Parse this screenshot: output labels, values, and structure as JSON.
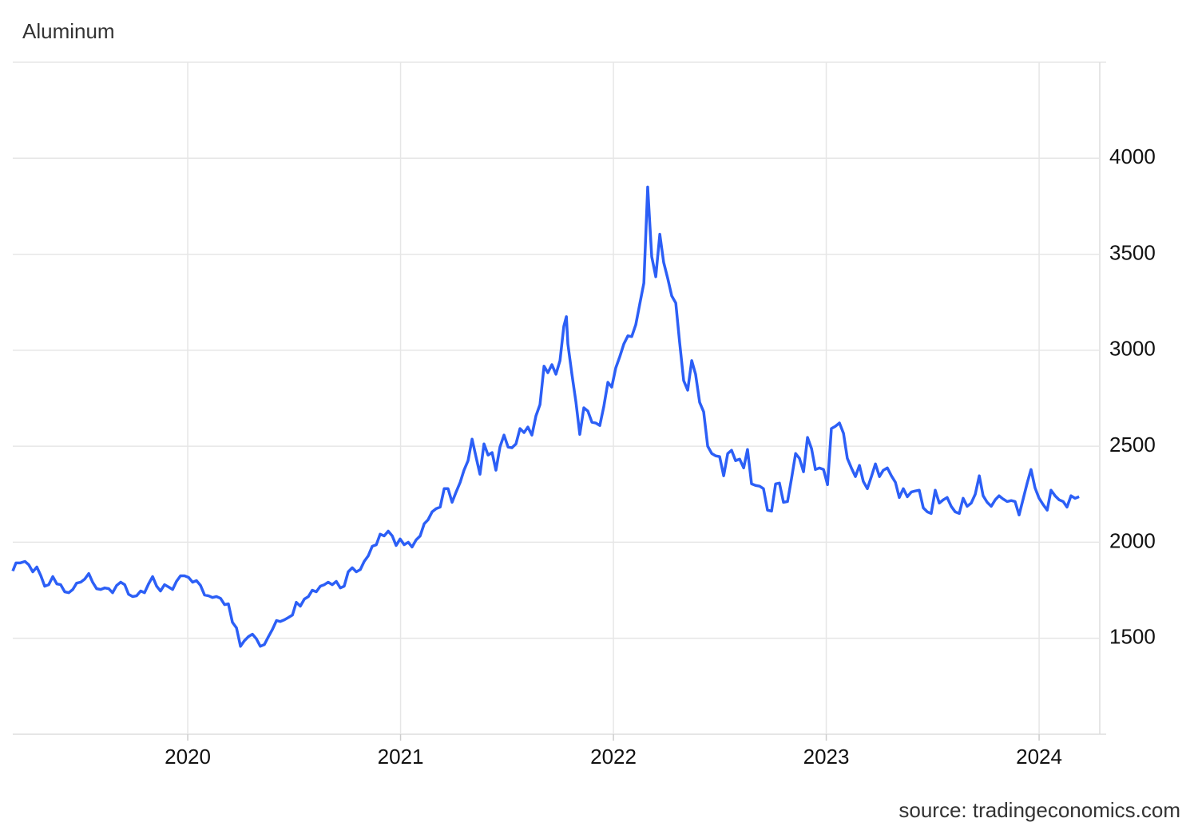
{
  "chart_data": {
    "type": "line",
    "title": "Aluminum",
    "source": "source: tradingeconomics.com",
    "color": "#2c5ff6",
    "grid": true,
    "xlim": [
      2019.178,
      2024.285
    ],
    "xticks": [
      2020,
      2021,
      2022,
      2023,
      2024
    ],
    "ylim": [
      1000,
      4500
    ],
    "yticks": [
      1500,
      2000,
      2500,
      3000,
      3500,
      4000
    ],
    "x": [
      2019.178,
      2019.193,
      2019.212,
      2019.235,
      2019.253,
      2019.272,
      2019.291,
      2019.31,
      2019.328,
      2019.347,
      2019.366,
      2019.385,
      2019.403,
      2019.422,
      2019.441,
      2019.46,
      2019.478,
      2019.497,
      2019.516,
      2019.535,
      2019.553,
      2019.572,
      2019.591,
      2019.61,
      2019.629,
      2019.647,
      2019.666,
      2019.685,
      2019.704,
      2019.722,
      2019.741,
      2019.76,
      2019.779,
      2019.797,
      2019.816,
      2019.835,
      2019.854,
      2019.872,
      2019.891,
      2019.91,
      2019.929,
      2019.947,
      2019.966,
      2019.985,
      2020.004,
      2020.023,
      2020.041,
      2020.06,
      2020.079,
      2020.098,
      2020.116,
      2020.135,
      2020.154,
      2020.173,
      2020.191,
      2020.21,
      2020.229,
      2020.248,
      2020.266,
      2020.285,
      2020.304,
      2020.323,
      2020.341,
      2020.36,
      2020.379,
      2020.398,
      2020.417,
      2020.435,
      2020.454,
      2020.473,
      2020.492,
      2020.51,
      2020.529,
      2020.548,
      2020.567,
      2020.585,
      2020.604,
      2020.623,
      2020.642,
      2020.66,
      2020.679,
      2020.698,
      2020.717,
      2020.735,
      2020.754,
      2020.773,
      2020.792,
      2020.811,
      2020.829,
      2020.848,
      2020.867,
      2020.886,
      2020.904,
      2020.923,
      2020.942,
      2020.961,
      2020.979,
      2020.998,
      2021.017,
      2021.036,
      2021.054,
      2021.073,
      2021.092,
      2021.111,
      2021.129,
      2021.148,
      2021.167,
      2021.186,
      2021.205,
      2021.223,
      2021.242,
      2021.261,
      2021.28,
      2021.298,
      2021.317,
      2021.336,
      2021.355,
      2021.373,
      2021.392,
      2021.411,
      2021.43,
      2021.448,
      2021.467,
      2021.486,
      2021.505,
      2021.523,
      2021.542,
      2021.561,
      2021.58,
      2021.598,
      2021.617,
      2021.636,
      2021.655,
      2021.674,
      2021.692,
      2021.711,
      2021.73,
      2021.749,
      2021.767,
      2021.779,
      2021.786,
      2021.805,
      2021.824,
      2021.842,
      2021.861,
      2021.88,
      2021.899,
      2021.917,
      2021.936,
      2021.955,
      2021.974,
      2021.992,
      2022.011,
      2022.03,
      2022.049,
      2022.068,
      2022.086,
      2022.105,
      2022.124,
      2022.143,
      2022.161,
      2022.18,
      2022.199,
      2022.218,
      2022.236,
      2022.255,
      2022.274,
      2022.293,
      2022.311,
      2022.33,
      2022.349,
      2022.368,
      2022.386,
      2022.405,
      2022.424,
      2022.443,
      2022.462,
      2022.48,
      2022.499,
      2022.518,
      2022.537,
      2022.555,
      2022.574,
      2022.593,
      2022.612,
      2022.63,
      2022.649,
      2022.668,
      2022.687,
      2022.705,
      2022.724,
      2022.743,
      2022.762,
      2022.78,
      2022.799,
      2022.818,
      2022.837,
      2022.856,
      2022.874,
      2022.893,
      2022.912,
      2022.931,
      2022.949,
      2022.968,
      2022.987,
      2023.006,
      2023.024,
      2023.043,
      2023.062,
      2023.081,
      2023.099,
      2023.118,
      2023.137,
      2023.156,
      2023.174,
      2023.193,
      2023.212,
      2023.231,
      2023.25,
      2023.268,
      2023.287,
      2023.306,
      2023.325,
      2023.343,
      2023.362,
      2023.381,
      2023.4,
      2023.418,
      2023.437,
      2023.456,
      2023.475,
      2023.493,
      2023.512,
      2023.531,
      2023.55,
      2023.568,
      2023.587,
      2023.606,
      2023.625,
      2023.643,
      2023.662,
      2023.681,
      2023.7,
      2023.719,
      2023.737,
      2023.756,
      2023.775,
      2023.794,
      2023.812,
      2023.831,
      2023.85,
      2023.869,
      2023.887,
      2023.906,
      2023.925,
      2023.944,
      2023.962,
      2023.981,
      2024.0,
      2024.019,
      2024.038,
      2024.056,
      2024.075,
      2024.094,
      2024.113,
      2024.131,
      2024.15,
      2024.169,
      2024.188
    ],
    "values": [
      1850,
      1892,
      1892,
      1900,
      1883,
      1846,
      1871,
      1825,
      1771,
      1779,
      1821,
      1783,
      1779,
      1742,
      1737,
      1754,
      1787,
      1792,
      1808,
      1837,
      1792,
      1758,
      1754,
      1762,
      1758,
      1737,
      1775,
      1792,
      1779,
      1729,
      1717,
      1721,
      1746,
      1737,
      1783,
      1821,
      1771,
      1746,
      1779,
      1767,
      1754,
      1796,
      1825,
      1825,
      1817,
      1792,
      1800,
      1775,
      1725,
      1721,
      1712,
      1717,
      1708,
      1675,
      1679,
      1583,
      1554,
      1458,
      1487,
      1508,
      1521,
      1496,
      1458,
      1467,
      1508,
      1546,
      1592,
      1587,
      1596,
      1608,
      1621,
      1687,
      1667,
      1704,
      1717,
      1750,
      1742,
      1771,
      1779,
      1792,
      1779,
      1796,
      1762,
      1771,
      1846,
      1867,
      1846,
      1858,
      1900,
      1929,
      1979,
      1987,
      2042,
      2033,
      2058,
      2033,
      1983,
      2017,
      1987,
      2000,
      1975,
      2012,
      2033,
      2096,
      2117,
      2158,
      2175,
      2183,
      2279,
      2279,
      2208,
      2262,
      2312,
      2375,
      2425,
      2537,
      2442,
      2354,
      2512,
      2454,
      2467,
      2375,
      2496,
      2558,
      2496,
      2492,
      2512,
      2592,
      2571,
      2600,
      2558,
      2658,
      2717,
      2917,
      2883,
      2925,
      2875,
      2946,
      3125,
      3175,
      3033,
      2875,
      2729,
      2562,
      2700,
      2683,
      2625,
      2621,
      2608,
      2708,
      2833,
      2808,
      2908,
      2967,
      3033,
      3075,
      3071,
      3133,
      3242,
      3350,
      3850,
      3487,
      3383,
      3604,
      3458,
      3375,
      3283,
      3246,
      3042,
      2842,
      2792,
      2946,
      2875,
      2729,
      2679,
      2500,
      2462,
      2450,
      2446,
      2346,
      2462,
      2479,
      2425,
      2433,
      2387,
      2483,
      2304,
      2296,
      2292,
      2279,
      2167,
      2162,
      2304,
      2308,
      2208,
      2212,
      2333,
      2462,
      2437,
      2367,
      2546,
      2487,
      2379,
      2387,
      2379,
      2300,
      2592,
      2604,
      2621,
      2567,
      2437,
      2387,
      2342,
      2400,
      2317,
      2279,
      2342,
      2408,
      2342,
      2375,
      2387,
      2346,
      2312,
      2233,
      2279,
      2237,
      2262,
      2267,
      2271,
      2179,
      2158,
      2150,
      2271,
      2204,
      2221,
      2233,
      2187,
      2158,
      2150,
      2229,
      2187,
      2204,
      2250,
      2346,
      2242,
      2208,
      2187,
      2221,
      2242,
      2225,
      2212,
      2217,
      2212,
      2142,
      2225,
      2308,
      2379,
      2283,
      2229,
      2196,
      2167,
      2271,
      2242,
      2221,
      2212,
      2183,
      2242,
      2229,
      2237
    ]
  }
}
